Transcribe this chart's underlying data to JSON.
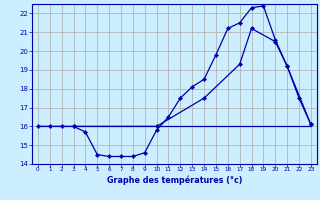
{
  "xlabel": "Graphe des températures (°c)",
  "background_color": "#cceeff",
  "line_color": "#0000aa",
  "grid_color": "#aaaaaa",
  "xlim": [
    -0.5,
    23.5
  ],
  "ylim": [
    14,
    22.5
  ],
  "yticks": [
    14,
    15,
    16,
    17,
    18,
    19,
    20,
    21,
    22
  ],
  "xticks": [
    0,
    1,
    2,
    3,
    4,
    5,
    6,
    7,
    8,
    9,
    10,
    11,
    12,
    13,
    14,
    15,
    16,
    17,
    18,
    19,
    20,
    21,
    22,
    23
  ],
  "series1_x": [
    0,
    1,
    2,
    3,
    4,
    5,
    6,
    7,
    8,
    9,
    10,
    11,
    12,
    13,
    14,
    15,
    16,
    17,
    18,
    19,
    20,
    21,
    22,
    23
  ],
  "series1_y": [
    16,
    16,
    16,
    16,
    15.7,
    14.5,
    14.4,
    14.4,
    14.4,
    14.6,
    15.8,
    16.5,
    17.5,
    18.1,
    18.5,
    19.8,
    21.2,
    21.5,
    22.3,
    22.4,
    20.6,
    19.2,
    17.5,
    16.1
  ],
  "series2_x": [
    0,
    23
  ],
  "series2_y": [
    16,
    16
  ],
  "series3_x": [
    3,
    10,
    14,
    17,
    18,
    20,
    21,
    23
  ],
  "series3_y": [
    16,
    16,
    17.5,
    19.3,
    21.2,
    20.5,
    19.2,
    16.1
  ]
}
